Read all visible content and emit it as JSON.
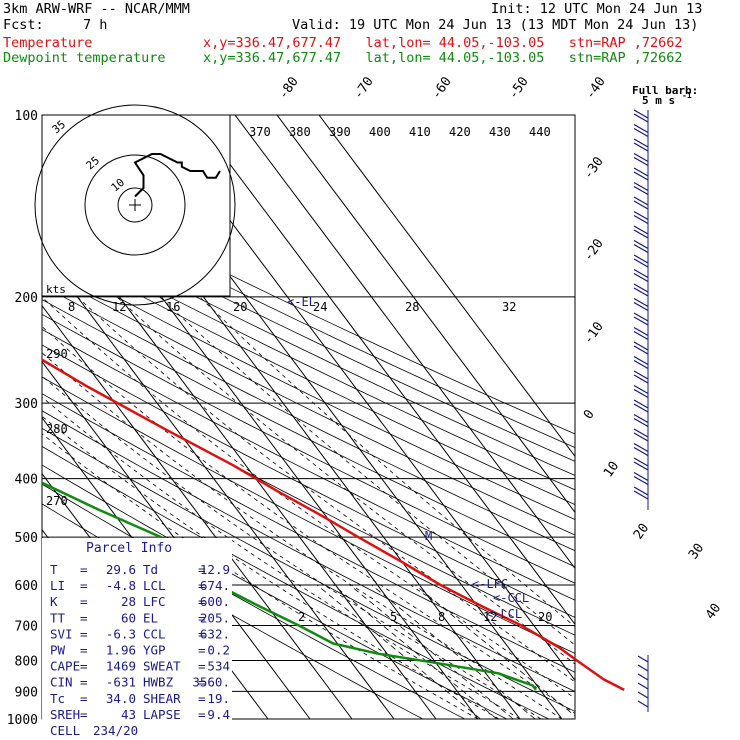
{
  "header": {
    "model": "3km ARW-WRF -- NCAR/MMM",
    "init": "Init: 12 UTC Mon 24 Jun 13",
    "fcst_label": "Fcst:",
    "fcst_value": "7 h",
    "valid": "Valid: 19 UTC Mon 24 Jun 13 (13 MDT Mon 24 Jun 13)",
    "temp_label": "Temperature",
    "temp_info": "x,y=336.47,677.47   lat,lon= 44.05,-103.05   stn=RAP ,72662",
    "dew_label": "Dewpoint temperature",
    "dew_info": "x,y=336.47,677.47   lat,lon= 44.05,-103.05   stn=RAP ,72662"
  },
  "colors": {
    "temperature": "#e01010",
    "dewpoint": "#108a10",
    "info": "#1a1a8a",
    "isobar": "#000000",
    "grid": "#000000"
  },
  "barb_legend": {
    "title": "Full barb:",
    "unit": "5 m s",
    "exp": "-1"
  },
  "hodograph": {
    "kts_label": "kts",
    "ring_labels": [
      "10",
      "25",
      "35"
    ],
    "axis_labels": [
      "8",
      "12",
      "16",
      "20",
      "24",
      "28",
      "32"
    ],
    "el_label": "<-EL"
  },
  "parcel_info": {
    "title": "Parcel Info",
    "rows": [
      [
        "T",
        "29.6",
        "Td",
        "12.9"
      ],
      [
        "LI",
        "-4.8",
        "LCL",
        "674."
      ],
      [
        "K",
        "28",
        "LFC",
        "600."
      ],
      [
        "TT",
        "60",
        "EL",
        "205."
      ],
      [
        "SVI",
        "-6.3",
        "CCL",
        "632."
      ],
      [
        "PW",
        "1.96",
        "YGP",
        "0.2"
      ],
      [
        "CAPE",
        "1469",
        "SWEAT",
        "534"
      ],
      [
        "CIN",
        "-631",
        "HWBZ",
        "3560."
      ],
      [
        "Tc",
        "34.0",
        "SHEAR",
        "19."
      ],
      [
        "SREH",
        "43",
        "LAPSE",
        "9.4"
      ],
      [
        "CELL",
        "234/20",
        "",
        ""
      ]
    ]
  },
  "level_markers": {
    "lfc": "<-LFC",
    "ccl": "<-CCL",
    "lcl": "<-LCL",
    "m": "M"
  },
  "chart_data": {
    "type": "line",
    "title": "",
    "ylabel": "",
    "xlabel": "",
    "pressure_levels": [
      100,
      200,
      300,
      400,
      500,
      600,
      700,
      800,
      900,
      1000
    ],
    "pressure_labels": [
      "100",
      "200",
      "300",
      "400",
      "500",
      "600",
      "700",
      "800",
      "900",
      "1000"
    ],
    "isotherm_labels_top": [
      "-80",
      "-70",
      "-60",
      "-50",
      "-40"
    ],
    "isotherm_labels_right": [
      "-30",
      "-20",
      "-10",
      "0",
      "10",
      "20",
      "30",
      "40"
    ],
    "theta_labels": [
      "370",
      "380",
      "390",
      "400",
      "410",
      "420",
      "430",
      "440"
    ],
    "theta_labels_left": [
      "290",
      "280",
      "270"
    ],
    "mixing_ratio_labels": [
      "2",
      "5",
      "8",
      "12",
      "20"
    ],
    "series": [
      {
        "name": "Temperature",
        "color": "#e01010",
        "points": [
          [
            100,
            -62
          ],
          [
            130,
            -58
          ],
          [
            150,
            -55
          ],
          [
            170,
            -55
          ],
          [
            185,
            -57
          ],
          [
            205,
            -60
          ],
          [
            215,
            -59
          ],
          [
            240,
            -53
          ],
          [
            280,
            -44
          ],
          [
            330,
            -33
          ],
          [
            380,
            -23
          ],
          [
            420,
            -17
          ],
          [
            460,
            -11
          ],
          [
            500,
            -6
          ],
          [
            550,
            0
          ],
          [
            600,
            5
          ],
          [
            650,
            11
          ],
          [
            700,
            17
          ],
          [
            760,
            22
          ],
          [
            800,
            24
          ],
          [
            860,
            27
          ],
          [
            895,
            30
          ]
        ]
      },
      {
        "name": "Dewpoint temperature",
        "color": "#108a10",
        "points": [
          [
            100,
            -72
          ],
          [
            120,
            -79
          ],
          [
            140,
            -86
          ],
          [
            160,
            -87
          ],
          [
            180,
            -88
          ],
          [
            200,
            -88
          ],
          [
            240,
            -86
          ],
          [
            280,
            -82
          ],
          [
            300,
            -80
          ],
          [
            330,
            -82
          ],
          [
            360,
            -80
          ],
          [
            400,
            -73
          ],
          [
            450,
            -63
          ],
          [
            500,
            -53
          ],
          [
            530,
            -50
          ],
          [
            560,
            -50
          ],
          [
            600,
            -48
          ],
          [
            650,
            -42
          ],
          [
            700,
            -36
          ],
          [
            750,
            -31
          ],
          [
            780,
            -22
          ],
          [
            810,
            -9
          ],
          [
            840,
            3
          ],
          [
            880,
            9
          ],
          [
            895,
            9
          ]
        ]
      }
    ],
    "hodograph_path": [
      [
        0,
        -1
      ],
      [
        1,
        -2
      ],
      [
        1,
        -3.5
      ],
      [
        0,
        -5
      ],
      [
        2,
        -6
      ],
      [
        3,
        -6
      ],
      [
        5,
        -5
      ],
      [
        5.5,
        -5
      ],
      [
        5.5,
        -4.5
      ],
      [
        6.5,
        -4
      ],
      [
        8,
        -4
      ],
      [
        8.3,
        -3.5
      ],
      [
        8.5,
        -3.2
      ],
      [
        9.5,
        -3.2
      ],
      [
        10,
        -4
      ]
    ],
    "wind_barbs": {
      "levels": [
        110,
        125,
        140,
        155,
        170,
        185,
        200,
        215,
        230,
        245,
        260,
        275,
        290,
        305,
        320,
        335,
        350,
        365,
        380,
        395,
        410,
        425,
        440,
        455,
        470,
        485,
        500
      ],
      "note": "westerly barbs along right edge"
    }
  }
}
